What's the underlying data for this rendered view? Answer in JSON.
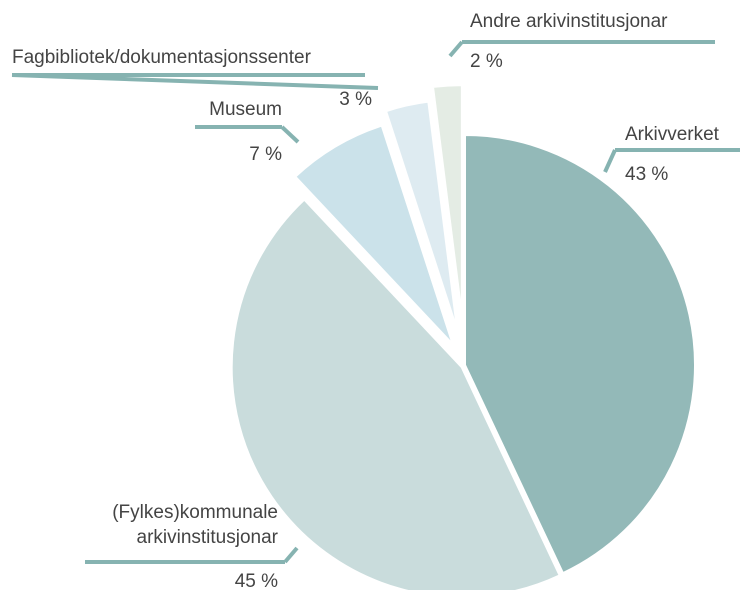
{
  "chart_data": {
    "type": "pie",
    "categories": [
      "Arkivverket",
      "(Fylkes)kommunale\narkivinstitusjonar",
      "Museum",
      "Fagbibliotek/dokumentasjonssenter",
      "Andre arkivinstitusjonar"
    ],
    "values": [
      43,
      45,
      7,
      3,
      2
    ],
    "value_labels": [
      "43 %",
      "45 %",
      "7 %",
      "3 %",
      "2 %"
    ],
    "colors": [
      "#93b9b8",
      "#c9dcdc",
      "#cbe2ea",
      "#deebf1",
      "#e4ece4"
    ],
    "leader_color": "#86b3b1"
  }
}
